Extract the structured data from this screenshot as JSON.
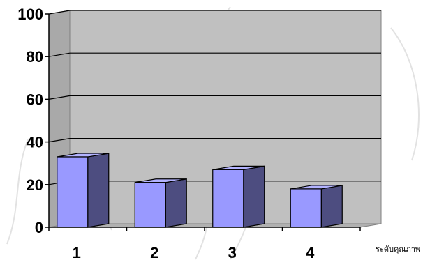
{
  "chart_data": {
    "type": "bar",
    "categories": [
      "1",
      "2",
      "3",
      "4"
    ],
    "values": [
      33,
      21,
      27,
      18
    ],
    "ylim": [
      0,
      100
    ],
    "yticks": [
      "0",
      "20",
      "40",
      "60",
      "80",
      "100"
    ],
    "xlabel": "ระดับคุณภาพ",
    "ylabel": "",
    "title": "",
    "grid": true,
    "legend": "none",
    "colors": {
      "plot_background": "#c0c0c0",
      "side_wall": "#a9a9a9",
      "floor": "#b0b0b0",
      "bar_front": "#9999ff",
      "bar_side": "#4d4d80",
      "bar_top": "#b3b3ff",
      "gridline": "#000000"
    }
  }
}
